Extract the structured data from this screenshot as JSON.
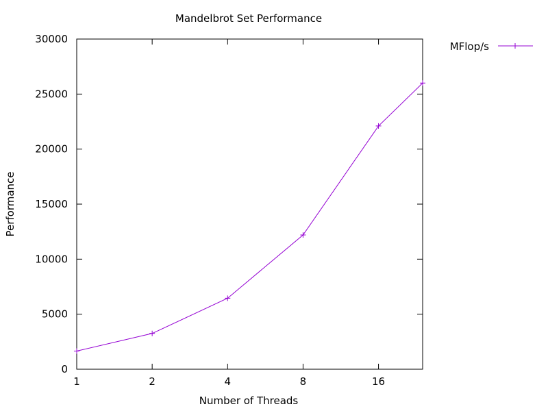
{
  "chart_data": {
    "type": "line",
    "title": "Mandelbrot Set Performance",
    "xlabel": "Number of Threads",
    "ylabel": "Performance",
    "x_scale": "log2",
    "xlim": [
      1,
      24
    ],
    "ylim": [
      0,
      30000
    ],
    "x_ticks": [
      1,
      2,
      4,
      8,
      16
    ],
    "x_tick_labels": [
      "1",
      "2",
      "4",
      "8",
      "16"
    ],
    "y_ticks": [
      0,
      5000,
      10000,
      15000,
      20000,
      25000,
      30000
    ],
    "y_tick_labels": [
      "0",
      "5000",
      "10000",
      "15000",
      "20000",
      "25000",
      "30000"
    ],
    "grid": false,
    "legend_position": "outside-top-right",
    "series": [
      {
        "name": "MFlop/s",
        "color": "#9400d3",
        "marker": "plus",
        "x": [
          1,
          2,
          4,
          8,
          16,
          24
        ],
        "y": [
          1650,
          3250,
          6450,
          12200,
          22100,
          26000
        ]
      }
    ]
  }
}
